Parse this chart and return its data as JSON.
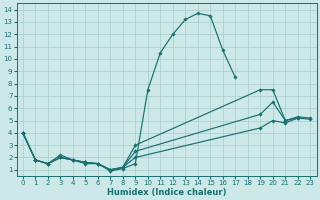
{
  "xlabel": "Humidex (Indice chaleur)",
  "xlim": [
    -0.5,
    23.5
  ],
  "ylim": [
    0.5,
    14.5
  ],
  "yticks": [
    1,
    2,
    3,
    4,
    5,
    6,
    7,
    8,
    9,
    10,
    11,
    12,
    13,
    14
  ],
  "xticks": [
    0,
    1,
    2,
    3,
    4,
    5,
    6,
    7,
    8,
    9,
    10,
    11,
    12,
    13,
    14,
    15,
    16,
    17,
    18,
    19,
    20,
    21,
    22,
    23
  ],
  "bg_color": "#cce8e8",
  "line_color": "#1a7070",
  "grid_color": "#aacccc",
  "line1": {
    "x": [
      0,
      1,
      2,
      3,
      4,
      5,
      6,
      7,
      8,
      9,
      10,
      11,
      12,
      13,
      14,
      15,
      16,
      17
    ],
    "y": [
      4.0,
      1.8,
      1.5,
      2.2,
      1.8,
      1.5,
      1.5,
      0.9,
      1.1,
      1.5,
      7.5,
      10.5,
      12.0,
      13.2,
      13.7,
      13.5,
      10.7,
      8.5
    ]
  },
  "line2": {
    "x": [
      0,
      1,
      2,
      3,
      4,
      5,
      6,
      7,
      8,
      9,
      19,
      20,
      21,
      22,
      23
    ],
    "y": [
      4.0,
      1.8,
      1.5,
      2.0,
      1.8,
      1.6,
      1.5,
      1.0,
      1.2,
      2.0,
      4.4,
      5.0,
      4.8,
      5.2,
      5.1
    ]
  },
  "line3": {
    "x": [
      0,
      1,
      2,
      3,
      4,
      5,
      6,
      7,
      8,
      9,
      19,
      20,
      21,
      22
    ],
    "y": [
      4.0,
      1.8,
      1.5,
      2.0,
      1.8,
      1.6,
      1.5,
      1.0,
      1.2,
      2.5,
      5.5,
      6.5,
      5.0,
      5.2
    ]
  },
  "line4": {
    "x": [
      0,
      1,
      2,
      3,
      4,
      5,
      6,
      7,
      8,
      9,
      19,
      20,
      21,
      22,
      23
    ],
    "y": [
      4.0,
      1.8,
      1.5,
      2.0,
      1.8,
      1.6,
      1.5,
      1.0,
      1.2,
      3.0,
      7.5,
      7.5,
      5.0,
      5.3,
      5.2
    ]
  }
}
